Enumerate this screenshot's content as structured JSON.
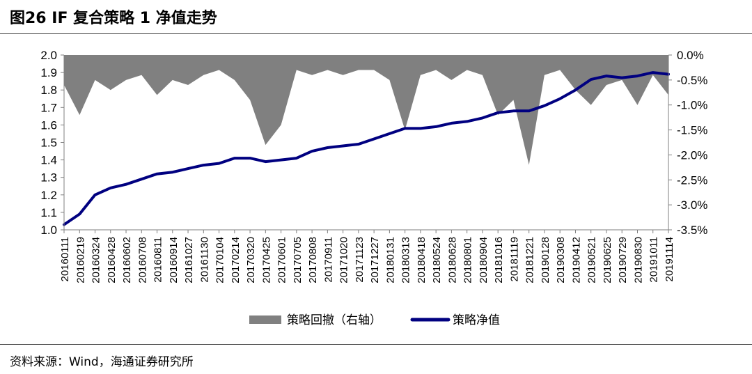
{
  "figure": {
    "title": "图26 IF 复合策略 1 净值走势",
    "source": "资料来源：Wind，海通证券研究所"
  },
  "chart_data": {
    "type": "line",
    "title": "",
    "xlabel": "",
    "x_ticks": [
      "20160111",
      "20160219",
      "20160324",
      "20160428",
      "20160602",
      "20160708",
      "20160811",
      "20160914",
      "20161027",
      "20161130",
      "20170104",
      "20170214",
      "20170320",
      "20170425",
      "20170601",
      "20170705",
      "20170808",
      "20170911",
      "20171020",
      "20171123",
      "20171227",
      "20180131",
      "20180313",
      "20180418",
      "20180524",
      "20180628",
      "20180801",
      "20180904",
      "20181016",
      "20181119",
      "20181221",
      "20190128",
      "20190308",
      "20190412",
      "20190521",
      "20190625",
      "20190729",
      "20190830",
      "20191011",
      "20191114"
    ],
    "y_left": {
      "ylim": [
        1.0,
        2.0
      ],
      "ticks": [
        "1.0",
        "1.1",
        "1.2",
        "1.3",
        "1.4",
        "1.5",
        "1.6",
        "1.7",
        "1.8",
        "1.9",
        "2.0"
      ]
    },
    "y_right": {
      "ylim": [
        -3.5,
        0.0
      ],
      "ticks": [
        "-3.5%",
        "-3.0%",
        "-2.5%",
        "-2.0%",
        "-1.5%",
        "-1.0%",
        "-0.5%",
        "0.0%"
      ]
    },
    "legend": {
      "position": "bottom",
      "items": [
        {
          "label": "策略回撤（右轴）",
          "color": "#808080",
          "kind": "area"
        },
        {
          "label": "策略净值",
          "color": "#000080",
          "kind": "line"
        }
      ]
    },
    "series": [
      {
        "name": "策略净值",
        "axis": "left",
        "color": "#000080",
        "values": [
          1.03,
          1.09,
          1.2,
          1.24,
          1.26,
          1.29,
          1.32,
          1.33,
          1.35,
          1.37,
          1.38,
          1.41,
          1.41,
          1.39,
          1.4,
          1.41,
          1.45,
          1.47,
          1.48,
          1.49,
          1.52,
          1.55,
          1.58,
          1.58,
          1.59,
          1.61,
          1.62,
          1.64,
          1.67,
          1.68,
          1.68,
          1.71,
          1.75,
          1.8,
          1.86,
          1.88,
          1.87,
          1.88,
          1.9,
          1.89
        ]
      },
      {
        "name": "策略回撤（右轴）",
        "axis": "right",
        "color": "#808080",
        "values": [
          -0.6,
          -1.2,
          -0.5,
          -0.7,
          -0.5,
          -0.4,
          -0.8,
          -0.5,
          -0.6,
          -0.4,
          -0.3,
          -0.5,
          -0.9,
          -1.8,
          -1.4,
          -0.3,
          -0.4,
          -0.3,
          -0.4,
          -0.3,
          -0.3,
          -0.5,
          -1.5,
          -0.4,
          -0.3,
          -0.5,
          -0.3,
          -0.4,
          -1.2,
          -0.9,
          -2.2,
          -0.4,
          -0.3,
          -0.7,
          -1.0,
          -0.6,
          -0.5,
          -1.0,
          -0.4,
          -0.8
        ]
      }
    ]
  }
}
